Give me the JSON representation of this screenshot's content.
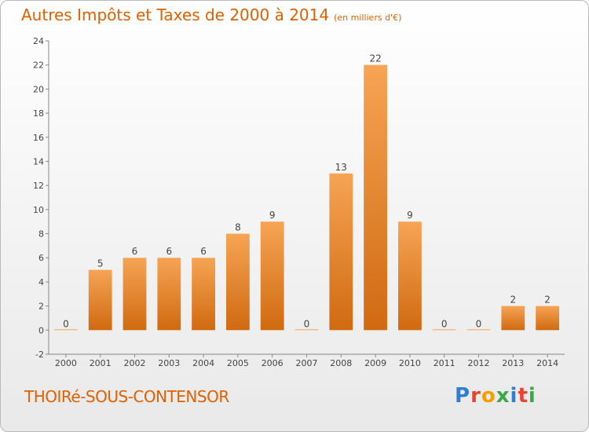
{
  "title": "Autres Impôts et Taxes de 2000 à 2014",
  "subtitle": "(en milliers d'€)",
  "commune": "THOIRé-SOUS-CONTENSOR",
  "logo": {
    "letters": [
      {
        "ch": "P",
        "color": "#2f7fd0"
      },
      {
        "ch": "r",
        "color": "#e8442e"
      },
      {
        "ch": "o",
        "color": "#f2a000"
      },
      {
        "ch": "x",
        "color": "#3aa844"
      },
      {
        "ch": "i",
        "color": "#2f7fd0"
      },
      {
        "ch": "t",
        "color": "#e8442e"
      },
      {
        "ch": "i",
        "color": "#3aa844"
      }
    ]
  },
  "colors": {
    "accent": "#e06000",
    "bar_top": "#f6a455",
    "bar_bottom": "#d06a10"
  },
  "chart_data": {
    "type": "bar",
    "categories": [
      "2000",
      "2001",
      "2002",
      "2003",
      "2004",
      "2005",
      "2006",
      "2007",
      "2008",
      "2009",
      "2010",
      "2011",
      "2012",
      "2013",
      "2014"
    ],
    "values": [
      0,
      5,
      6,
      6,
      6,
      8,
      9,
      0,
      13,
      22,
      9,
      0,
      0,
      2,
      2
    ],
    "data_labels": [
      "0",
      "5",
      "6",
      "6",
      "6",
      "8",
      "9",
      "0",
      "13",
      "22",
      "9",
      "0",
      "0",
      "2",
      "2"
    ],
    "ylim": [
      -2,
      24
    ],
    "yticks": [
      -2,
      0,
      2,
      4,
      6,
      8,
      10,
      12,
      14,
      16,
      18,
      20,
      22,
      24
    ],
    "grid": false,
    "legend": "none"
  }
}
